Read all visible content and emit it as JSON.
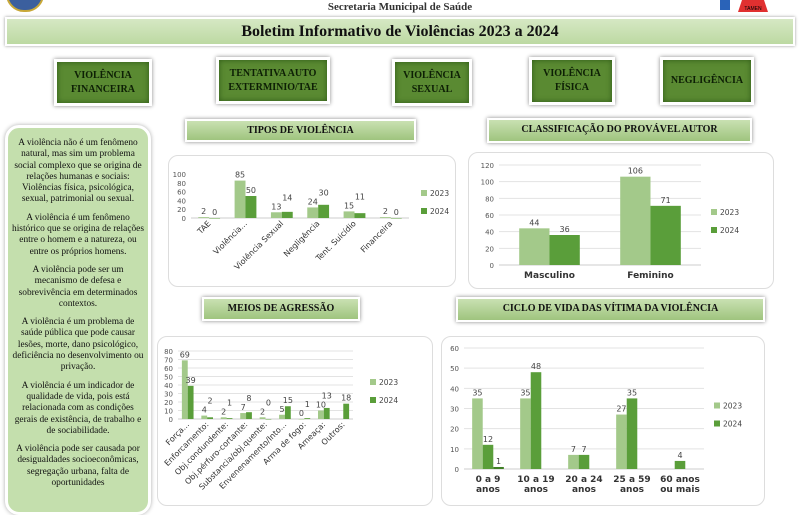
{
  "header": {
    "org": "Secretaria Municipal de Saúde",
    "logo_text": "TAMEN",
    "title": "Boletim Informativo de Violências 2023 a 2024"
  },
  "buttons": [
    {
      "label": "VIOLÊNCIA FINANCEIRA"
    },
    {
      "label": "TENTATIVA AUTO EXTERMINIO/TAE"
    },
    {
      "label": "VIOLÊNCIA SEXUAL"
    },
    {
      "label": "VIOLÊNCIA FÍSICA"
    },
    {
      "label": "NEGLIGÊNCIA"
    }
  ],
  "sidebar": {
    "paragraphs": [
      "A violência não é um fenômeno natural, mas sim um problema social complexo que se origina de relações humanas e sociais: Violências física, psicológica, sexual, patrimonial ou sexual.",
      "A violência é um fenômeno histórico que se origina de relações entre o homem e a natureza, ou entre os próprios homens.",
      "A violência pode ser um mecanismo de defesa e sobrevivência em determinados contextos.",
      "A violência é um problema de saúde pública que pode causar lesões, morte, dano psicológico, deficiência no desenvolvimento ou privação.",
      "A violência é um indicador de qualidade de vida, pois está relacionada com as condições gerais de existência, de trabalho e de sociabilidade.",
      "A violência pode ser causada por desigualdades socioeconômicas, segregação urbana, falta de oportunidades"
    ]
  },
  "colors": {
    "s2023": "#a3c98a",
    "s2024": "#5a9e3a",
    "s_extra": "#3f7f25"
  },
  "chart_data": [
    {
      "id": "tipos",
      "type": "bar",
      "title": "TIPOS DE VIOLÊNCIA",
      "categories": [
        "TAE",
        "Violência...",
        "Violência Sexual",
        "Negligência",
        "Tent. Suicídio",
        "Financeira"
      ],
      "series": [
        {
          "name": "2023",
          "values": [
            2,
            85,
            13,
            24,
            15,
            2
          ]
        },
        {
          "name": "2024",
          "values": [
            0,
            50,
            14,
            30,
            11,
            0
          ]
        }
      ],
      "ylim": [
        0,
        100
      ],
      "yticks": [
        0,
        20,
        40,
        60,
        80,
        100
      ],
      "grid": false,
      "legend": "right"
    },
    {
      "id": "autor",
      "type": "bar",
      "title": "CLASSIFICAÇÃO DO PROVÁVEL AUTOR",
      "categories": [
        "Masculino",
        "Feminino"
      ],
      "series": [
        {
          "name": "2023",
          "values": [
            44,
            106
          ]
        },
        {
          "name": "2024",
          "values": [
            36,
            71
          ]
        }
      ],
      "ylim": [
        0,
        120
      ],
      "yticks": [
        0,
        20,
        40,
        60,
        80,
        100,
        120
      ],
      "grid": true,
      "legend": "right"
    },
    {
      "id": "meios",
      "type": "bar",
      "title": "MEIOS DE AGRESSÃO",
      "categories": [
        "Força...",
        "Enforcamento:",
        "Obj.condundente:",
        "Obj.pérfuro-cortante:",
        "Substancia/obj.quente:",
        "Envenenamento/Into...",
        "Arma de fogo:",
        "Ameaça:",
        "Outros:"
      ],
      "series": [
        {
          "name": "2023",
          "values": [
            69,
            4,
            2,
            7,
            2,
            5,
            0,
            10,
            null
          ]
        },
        {
          "name": "2024",
          "values": [
            39,
            2,
            1,
            8,
            0,
            15,
            1,
            13,
            18
          ]
        }
      ],
      "ylim": [
        0,
        80
      ],
      "yticks": [
        0,
        10,
        20,
        30,
        40,
        50,
        60,
        70,
        80
      ],
      "grid": true,
      "legend": "right"
    },
    {
      "id": "ciclo",
      "type": "bar",
      "title": "CICLO DE VIDA DAS VÍTIMA DA VIOLÊNCIA",
      "categories": [
        "0 a 9 anos",
        "10 a 19 anos",
        "20 a  24 anos",
        "25 a 59 anos",
        "60 anos ou mais"
      ],
      "series": [
        {
          "name": "2023",
          "values": [
            35,
            35,
            7,
            27,
            null
          ]
        },
        {
          "name": "2024",
          "values": [
            12,
            48,
            7,
            35,
            4
          ]
        },
        {
          "name": "",
          "values": [
            1,
            null,
            null,
            null,
            null
          ]
        }
      ],
      "ylim": [
        0,
        60
      ],
      "yticks": [
        0,
        10,
        20,
        30,
        40,
        50,
        60
      ],
      "grid": true,
      "legend": "right"
    }
  ]
}
